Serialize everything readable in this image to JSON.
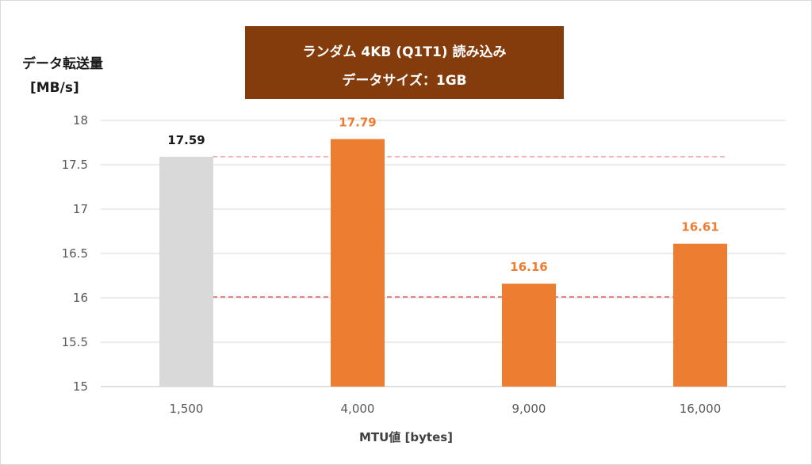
{
  "chart_data": {
    "type": "bar",
    "title": "ランダム 4KB (Q1T1) 読み込み",
    "subtitle": "データサイズ：1GB",
    "ylabel_line1": "データ転送量",
    "ylabel_line2": "[MB/s]",
    "xlabel": "MTU値 [bytes]",
    "categories": [
      "1,500",
      "4,000",
      "9,000",
      "16,000"
    ],
    "values": [
      17.59,
      17.79,
      16.16,
      16.61
    ],
    "value_labels": [
      "17.59",
      "17.79",
      "16.16",
      "16.61"
    ],
    "bar_colors": [
      "#d9d9d9",
      "#ed7d31",
      "#ed7d31",
      "#ed7d31"
    ],
    "label_colors": [
      "#1a1a1a",
      "#ed7d31",
      "#ed7d31",
      "#ed7d31"
    ],
    "ylim": [
      15,
      18
    ],
    "yticks": [
      15,
      15.5,
      16,
      16.5,
      17,
      17.5,
      18
    ],
    "ytick_labels": [
      "15",
      "15.5",
      "16",
      "16.5",
      "17",
      "17.5",
      "18"
    ],
    "grid": true,
    "reference_lines": [
      {
        "value": 17.59,
        "color": "#f4a6a6",
        "style": "dashed"
      },
      {
        "value": 16.01,
        "color": "#e06666",
        "style": "dashed"
      }
    ],
    "title_box_color": "#843c0c"
  }
}
